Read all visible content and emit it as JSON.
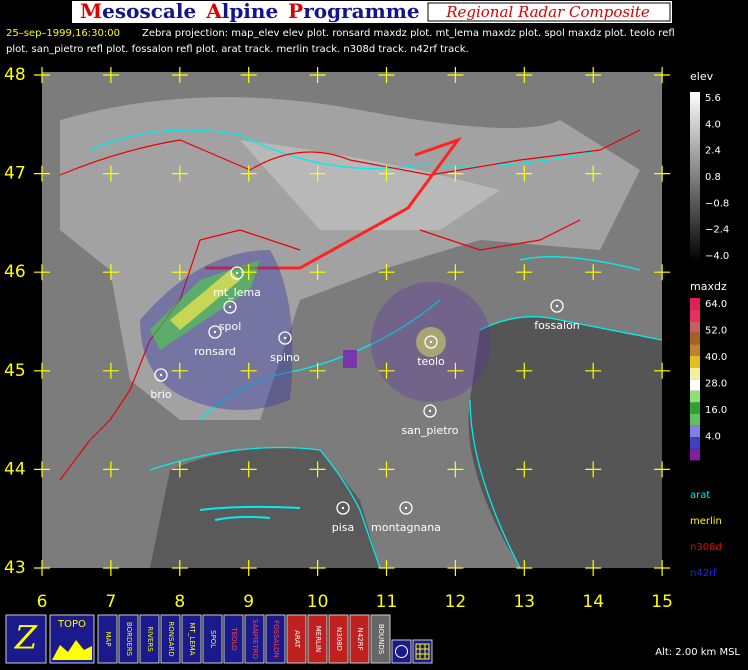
{
  "header": {
    "title_words": [
      "Mesoscale",
      "Alpine",
      "Programme"
    ],
    "subtitle": "Regional Radar Composite"
  },
  "status": {
    "time": "25–sep–1999,16:30:00",
    "line1": "Zebra projection: map_elev elev plot.  ronsard maxdz plot.  mt_lema maxdz plot.  spol maxdz plot.  teolo refl",
    "line2": "plot.  san_pietro refl plot.  fossalon refl plot.  arat track.   merlin track.   n308d track.   n42rf track."
  },
  "map": {
    "lat_labels": [
      "48",
      "47",
      "46",
      "45",
      "44",
      "43"
    ],
    "lon_labels": [
      "6",
      "7",
      "8",
      "9",
      "10",
      "11",
      "12",
      "13",
      "14",
      "15"
    ],
    "stations": [
      "mt_lema",
      "spol",
      "ronsard",
      "spino",
      "brio",
      "teolo",
      "san_pietro",
      "fossalon",
      "pisa",
      "montagnana"
    ]
  },
  "legend": {
    "elev": {
      "title": "elev",
      "labels": [
        "5.6",
        "4.0",
        "2.4",
        "0.8",
        "−0.8",
        "−2.4",
        "−4.0"
      ]
    },
    "maxdz": {
      "title": "maxdz",
      "labels": [
        "64.0",
        "52.0",
        "40.0",
        "28.0",
        "16.0",
        "4.0"
      ]
    },
    "tracks": [
      "arat",
      "merlin",
      "n308d",
      "n42rf"
    ]
  },
  "toolbar": {
    "logo": "Z",
    "topo": "TOPO",
    "buttons": [
      "MAP",
      "BORDERS",
      "RIVERS",
      "RONSARD",
      "MT_LEMA",
      "SPOL",
      "TEOLO",
      "SANPIETRO",
      "FOSSALON",
      "ARAT",
      "MERLIN",
      "N308D",
      "N42RF",
      "BOUNDS"
    ]
  },
  "altitude": "Alt: 2.00 km MSL"
}
